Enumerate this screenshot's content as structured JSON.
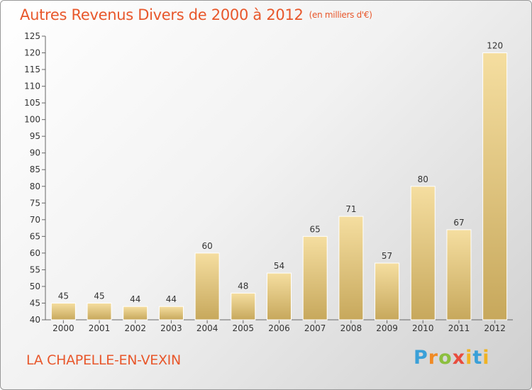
{
  "header": {
    "title": "Autres Revenus Divers de 2000 à 2012",
    "unit": "(en milliers d'€)"
  },
  "footer": {
    "city": "LA CHAPELLE-EN-VEXIN",
    "logo_text": "Proxiti"
  },
  "colors": {
    "title": "#e8572b",
    "bar_light": "#f5dea0",
    "bar_dark": "#c7a85c",
    "axis": "#555555"
  },
  "chart_data": {
    "type": "bar",
    "title": "Autres Revenus Divers de 2000 à 2012",
    "subtitle": "(en milliers d'€)",
    "categories": [
      "2000",
      "2001",
      "2002",
      "2003",
      "2004",
      "2005",
      "2006",
      "2007",
      "2008",
      "2009",
      "2010",
      "2011",
      "2012"
    ],
    "values": [
      45,
      45,
      44,
      44,
      60,
      48,
      54,
      65,
      71,
      57,
      80,
      67,
      120
    ],
    "ylim": [
      40,
      125
    ],
    "yticks": [
      40,
      45,
      50,
      55,
      60,
      65,
      70,
      75,
      80,
      85,
      90,
      95,
      100,
      105,
      110,
      115,
      120,
      125
    ],
    "grid": false,
    "data_labels": true
  }
}
